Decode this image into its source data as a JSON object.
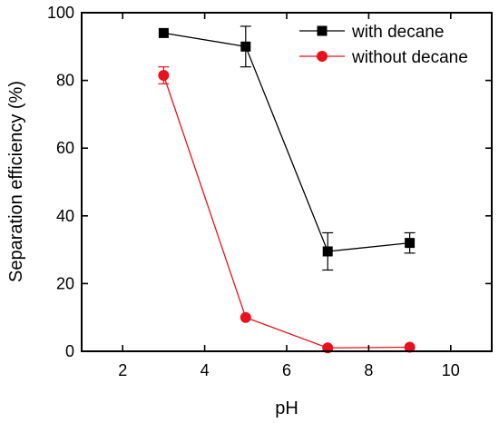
{
  "chart_data": {
    "type": "line",
    "title": "",
    "xlabel": "pH",
    "ylabel": "Separation efficiency (%)",
    "xlim": [
      1,
      11
    ],
    "ylim": [
      0,
      100
    ],
    "x_ticks": [
      2,
      4,
      6,
      8,
      10
    ],
    "y_ticks": [
      0,
      20,
      40,
      60,
      80,
      100
    ],
    "grid": false,
    "legend_position": "top-right",
    "series": [
      {
        "name": "with decane",
        "color": "#000000",
        "marker": "square",
        "x": [
          3,
          5,
          7,
          9
        ],
        "y": [
          94,
          90,
          29.5,
          32
        ],
        "error": [
          0,
          6,
          5.5,
          3
        ]
      },
      {
        "name": "without decane",
        "color": "#e8111c",
        "marker": "circle",
        "x": [
          3,
          5,
          7,
          9
        ],
        "y": [
          81.5,
          10,
          1,
          1.2
        ],
        "error": [
          2.5,
          0,
          0,
          0
        ]
      }
    ]
  }
}
